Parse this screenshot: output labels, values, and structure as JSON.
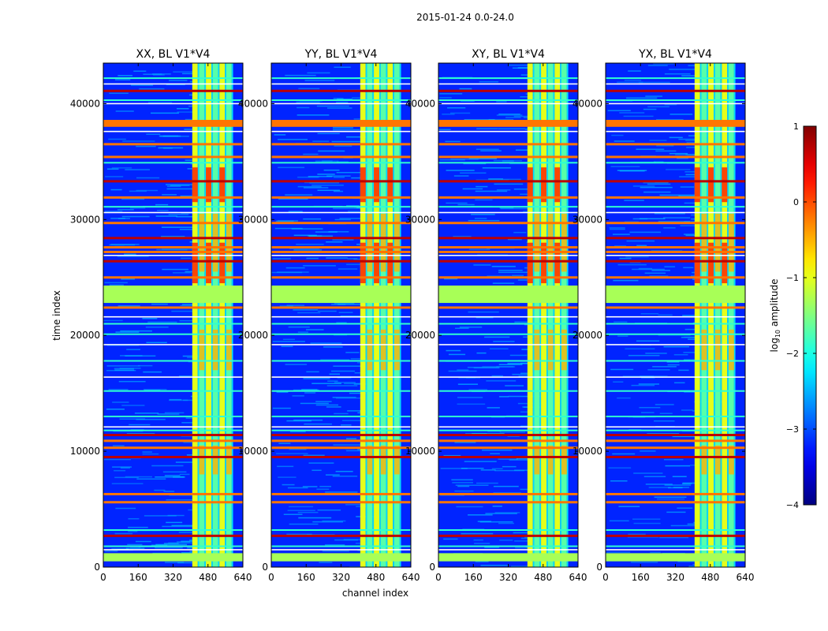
{
  "chart_data": {
    "type": "heatmap",
    "title": "2015-01-24 0.0-24.0",
    "xlabel": "channel index",
    "ylabel": "time index",
    "xlim": [
      0,
      640
    ],
    "ylim": [
      0,
      43500
    ],
    "xticks": [
      0,
      160,
      320,
      480,
      640
    ],
    "yticks": [
      0,
      10000,
      20000,
      30000,
      40000
    ],
    "colorbar": {
      "label": "log10 amplitude",
      "label_base": "log",
      "label_sub": "10",
      "label_rest": " amplitude",
      "range": [
        -4,
        1
      ],
      "ticks": [
        1,
        0,
        -1,
        -2,
        -3,
        -4
      ],
      "tick_labels": [
        "1",
        "0",
        "−1",
        "−2",
        "−3",
        "−4"
      ],
      "colormap": "jet"
    },
    "panels": [
      {
        "name": "XX",
        "title": "XX, BL V1*V4"
      },
      {
        "name": "YY",
        "title": "YY, BL V1*V4"
      },
      {
        "name": "XY",
        "title": "XY, BL V1*V4"
      },
      {
        "name": "YX",
        "title": "YX, BL V1*V4"
      }
    ],
    "features": {
      "background_value": -3.2,
      "signal_channel_range": [
        408,
        595
      ],
      "signal_levels": {
        "low": -1.7,
        "mid": -1.0,
        "high": -0.5,
        "peak": 0.2
      },
      "flagged_blocks": [
        {
          "t0": 22800,
          "t1": 24300,
          "value": -1.3
        },
        {
          "t0": 500,
          "t1": 1200,
          "value": -1.3
        },
        {
          "t0": 38000,
          "t1": 38600,
          "value": -0.2
        }
      ],
      "flagged_lines_high": [
        2700,
        5600,
        6300,
        9500,
        10300,
        10900,
        11400,
        22400,
        25000,
        26400,
        27200,
        27600,
        28400,
        29700,
        31900,
        33300,
        35400,
        36500,
        41100
      ],
      "flagged_lines_mid": [
        1800,
        3200,
        11800,
        13000,
        15200,
        17800,
        20100,
        21000,
        31100,
        34900,
        40300,
        42200
      ],
      "flagged_lines_white": [
        1500,
        12100,
        16400,
        19200,
        21600,
        26900,
        30600,
        37600,
        40000,
        41700
      ]
    }
  },
  "colors": {
    "frame": "#000000",
    "background": "#ffffff"
  }
}
